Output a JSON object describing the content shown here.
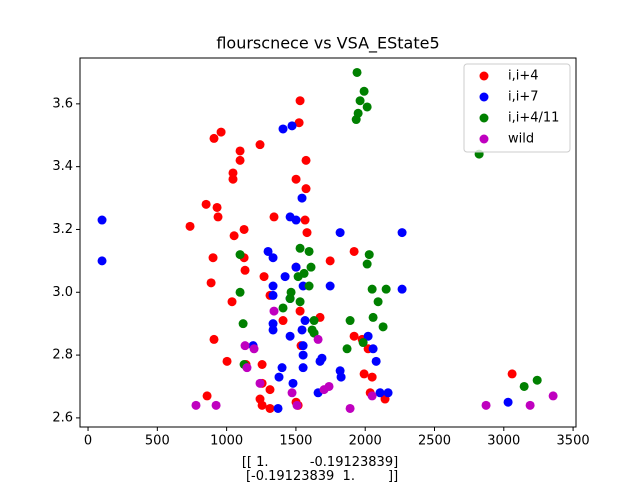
{
  "chart_data": {
    "type": "scatter",
    "title": "flourscnece vs VSA_EState5",
    "x_label": "[[ 1.          -0.19123839]\n [-0.19123839  1.        ]]",
    "xlim": [
      -58,
      3521
    ],
    "ylim": [
      2.571,
      3.746
    ],
    "xticks": [
      0,
      500,
      1000,
      1500,
      2000,
      2500,
      3000,
      3500
    ],
    "yticks": [
      2.6,
      2.8,
      {
        "value": 3,
        "label": "3.0"
      },
      3.2,
      3.4,
      3.6
    ],
    "legend": "upper right",
    "series": [
      {
        "name": "i,i+4",
        "color": "#ff0000",
        "x": [
          1530,
          1523,
          1097,
          960,
          909,
          1241,
          1046,
          1046,
          1097,
          938,
          852,
          736,
          931,
          1054,
          1126,
          1342,
          1501,
          1573,
          1573,
          1566,
          1580,
          902,
          1126,
          1133,
          1039,
          1270,
          1313,
          1501,
          1747,
          1920,
          888,
          909,
          1003,
          1140,
          1256,
          1530,
          1674,
          1920,
          1978,
          2021,
          1992,
          2050,
          2143,
          2036,
          1256,
          1313,
          1241,
          1256,
          1313,
          1501,
          1516,
          859,
          3060,
          1537,
          1407
        ],
        "values": [
          3.61,
          3.54,
          3.45,
          3.51,
          3.49,
          3.47,
          3.38,
          3.36,
          3.42,
          3.24,
          3.28,
          3.21,
          3.27,
          3.18,
          3.2,
          3.24,
          3.36,
          3.42,
          3.33,
          3.23,
          3.19,
          3.11,
          3.11,
          3.07,
          2.97,
          3.05,
          2.99,
          3.08,
          3.1,
          3.13,
          3.03,
          2.85,
          2.78,
          2.77,
          2.77,
          2.94,
          2.92,
          2.86,
          2.85,
          2.82,
          2.74,
          2.73,
          2.66,
          2.68,
          2.71,
          2.69,
          2.66,
          2.64,
          2.63,
          2.65,
          2.64,
          2.67,
          2.74,
          2.83,
          2.91
        ]
      },
      {
        "name": "i,i+7",
        "color": "#0000ff",
        "x": [
          101,
          101,
          1407,
          1472,
          1544,
          1458,
          1501,
          1819,
          2266,
          2266,
          1299,
          1335,
          1501,
          1422,
          1335,
          1335,
          1458,
          1552,
          1747,
          1566,
          1335,
          1458,
          1544,
          1552,
          1552,
          1552,
          1674,
          1688,
          1400,
          1378,
          1479,
          1371,
          1660,
          1819,
          1826,
          2021,
          2079,
          2057,
          2107,
          2165,
          3031,
          1191,
          1335
        ],
        "values": [
          3.23,
          3.1,
          3.52,
          3.53,
          3.3,
          3.24,
          3.23,
          3.19,
          3.19,
          3.01,
          3.13,
          3.11,
          3.08,
          3.05,
          3.02,
          2.99,
          2.98,
          3.02,
          3.02,
          2.91,
          2.88,
          2.86,
          2.88,
          2.83,
          2.8,
          2.76,
          2.78,
          2.79,
          2.76,
          2.73,
          2.71,
          2.63,
          2.68,
          2.75,
          2.73,
          2.86,
          2.78,
          2.82,
          2.68,
          2.68,
          2.65,
          2.83,
          2.9
        ]
      },
      {
        "name": "i,i+4/11",
        "color": "#008000",
        "x": [
          1941,
          1992,
          1963,
          2014,
          1949,
          1935,
          2822,
          1530,
          1595,
          2029,
          2014,
          1097,
          1609,
          1559,
          1516,
          1595,
          1097,
          1465,
          1458,
          1407,
          1530,
          2050,
          2151,
          2093,
          2057,
          1119,
          1631,
          1891,
          2129,
          1631,
          1985,
          1869,
          1126,
          3147,
          3241,
          1617
        ],
        "values": [
          3.7,
          3.64,
          3.61,
          3.59,
          3.57,
          3.55,
          3.44,
          3.14,
          3.13,
          3.12,
          3.09,
          3.12,
          3.08,
          3.06,
          3.05,
          3.02,
          3,
          3,
          2.98,
          2.95,
          2.97,
          3.01,
          3.01,
          2.97,
          2.92,
          2.9,
          2.91,
          2.91,
          2.89,
          2.87,
          2.84,
          2.82,
          2.77,
          2.7,
          2.72,
          2.88
        ]
      },
      {
        "name": "wild",
        "color": "#bf00bf",
        "x": [
          779,
          924,
          1133,
          1198,
          1241,
          1147,
          1342,
          1660,
          1472,
          1703,
          1739,
          1891,
          2050,
          2872,
          3190,
          3356,
          1508
        ],
        "values": [
          2.64,
          2.64,
          2.83,
          2.82,
          2.71,
          2.76,
          2.94,
          2.85,
          2.68,
          2.69,
          2.7,
          2.63,
          2.67,
          2.64,
          2.64,
          2.67,
          2.64
        ]
      }
    ]
  }
}
